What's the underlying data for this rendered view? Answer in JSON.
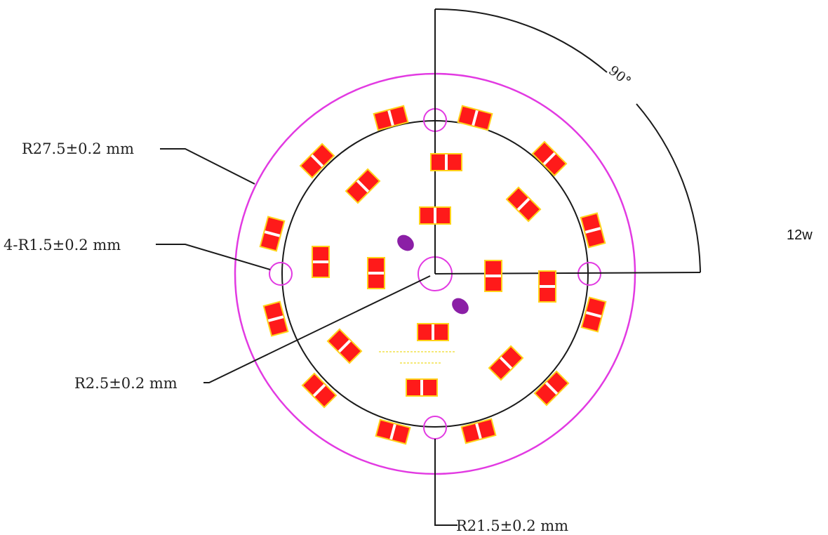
{
  "labels": {
    "outer_radius": "R27.5±0.2 mm",
    "mounting_holes": "4-R1.5±0.2 mm",
    "center_hole": "R2.5±0.2 mm",
    "led_ring_radius": "R21.5±0.2 mm",
    "angle": "90°",
    "power": "12w"
  },
  "colors": {
    "board_outline": "#e23ae2",
    "led_ring": "#1a1a1a",
    "dimension_line": "#1a1a1a",
    "led_body": "#ff1a1a",
    "led_pad": "#ffd21a",
    "led_gap": "#ffffff",
    "component": "#8b1fa6"
  },
  "led_count": 30
}
